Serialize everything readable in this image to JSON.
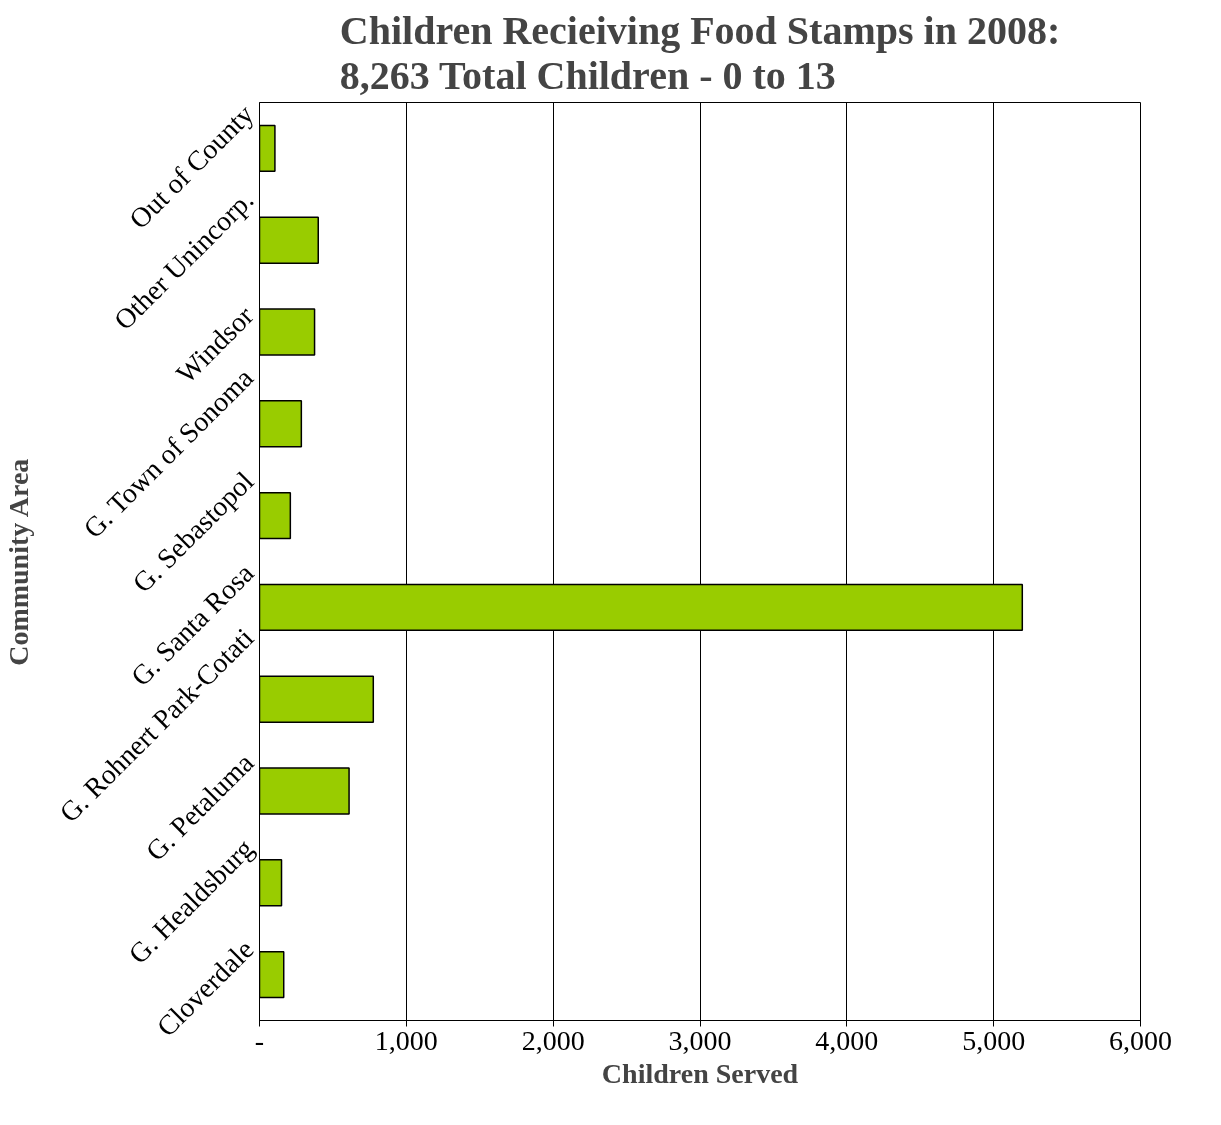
{
  "chart_data": {
    "type": "bar",
    "orientation": "horizontal",
    "title": "Children Recieiving Food Stamps in 2008:\n8,263 Total Children - 0 to 13",
    "xlabel": "Children Served",
    "ylabel": "Community Area",
    "categories": [
      "Out of County",
      "Other Unincorp.",
      "Windsor",
      "G. Town of Sonoma",
      "G. Sebastopol",
      "G. Santa Rosa",
      "G. Rohnert Park-Cotati",
      "G. Petaluma",
      "G. Healdsburg",
      "Cloverdale"
    ],
    "values": [
      105,
      400,
      375,
      285,
      210,
      5195,
      775,
      610,
      150,
      165
    ],
    "color": "#99cc00",
    "xlim": [
      0,
      6000
    ],
    "xticks": [
      {
        "value": 0,
        "label": "-"
      },
      {
        "value": 1000,
        "label": "1,000"
      },
      {
        "value": 2000,
        "label": "2,000"
      },
      {
        "value": 3000,
        "label": "3,000"
      },
      {
        "value": 4000,
        "label": "4,000"
      },
      {
        "value": 5000,
        "label": "5,000"
      },
      {
        "value": 6000,
        "label": "6,000"
      }
    ],
    "grid": "x",
    "legend": false
  }
}
